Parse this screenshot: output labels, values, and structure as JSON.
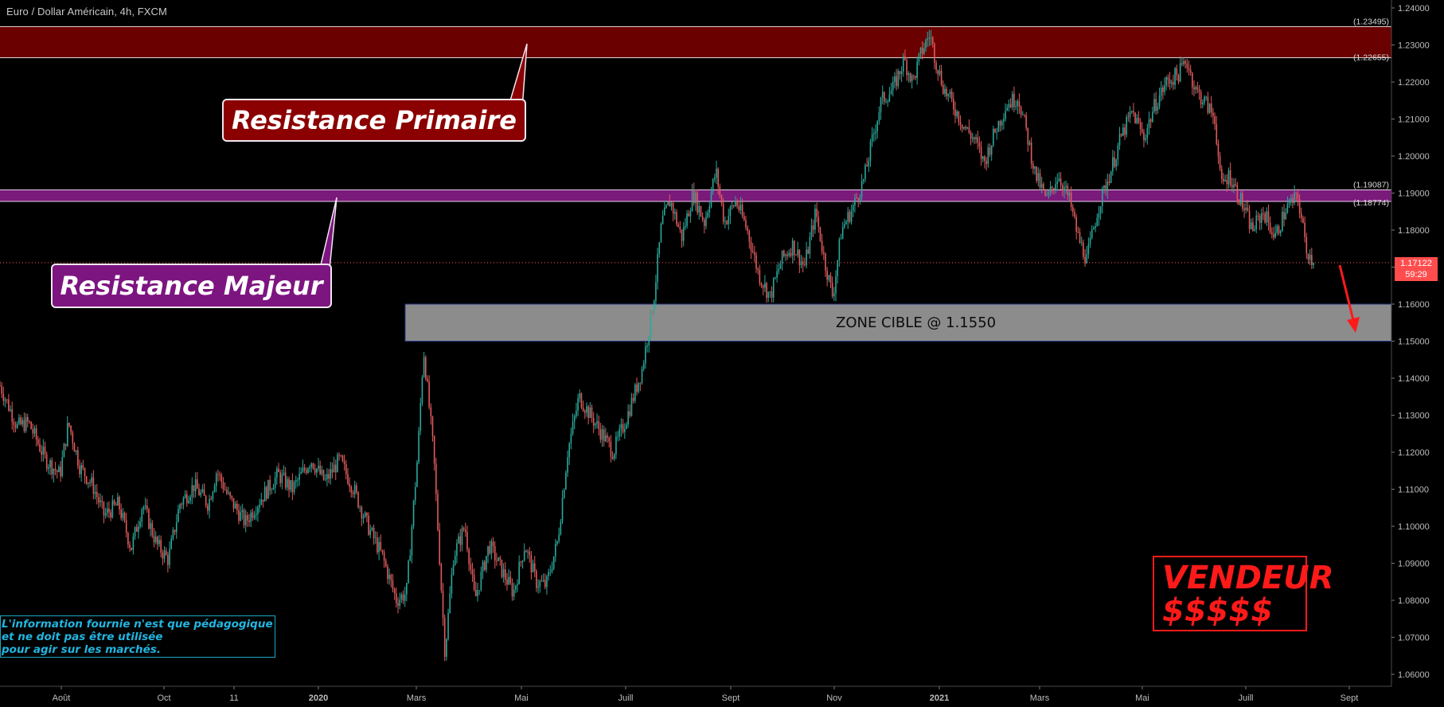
{
  "header": {
    "symbol_title": "Euro / Dollar Américain, 4h, FXCM"
  },
  "annotations": {
    "resistance_primaire": "Resistance Primaire",
    "resistance_majeur": "Resistance Majeur",
    "zone_cible": "ZONE CIBLE @  1.1550",
    "vendeur_line1": "VENDEUR",
    "vendeur_line2": "$$$$$",
    "info_line1": "L'information fournie n'est que pédagogique",
    "info_line2": "et ne doit pas être utilisée",
    "info_line3": "pour agir sur les marchés."
  },
  "price_tag": {
    "price": "1.17122",
    "countdown": "59:29"
  },
  "colors": {
    "background": "#000000",
    "candle_up": "#2aa89a",
    "candle_down": "#e05a5a",
    "primaire_band": "#6a0000",
    "majeur_band": "#7a1a7a",
    "zone_band": "#8c8c8c",
    "sell_arrow": "#ff1a1a",
    "price_line": "#ff5a5a"
  },
  "chart_data": {
    "type": "candlestick",
    "symbol": "EURUSD",
    "timeframe": "4h",
    "ylim": [
      1.056,
      1.243
    ],
    "y_ticks": [
      "1.24000",
      "1.23000",
      "1.22000",
      "1.21000",
      "1.20000",
      "1.19000",
      "1.18000",
      "1.17000",
      "1.16000",
      "1.15000",
      "1.14000",
      "1.13000",
      "1.12000",
      "1.11000",
      "1.10000",
      "1.09000",
      "1.08000",
      "1.07000",
      "1.06000"
    ],
    "x_ticks": [
      {
        "label": "Août",
        "bold": false
      },
      {
        "label": "Oct",
        "bold": false
      },
      {
        "label": "11",
        "bold": false
      },
      {
        "label": "2020",
        "bold": true
      },
      {
        "label": "Mars",
        "bold": false
      },
      {
        "label": "Mai",
        "bold": false
      },
      {
        "label": "Juill",
        "bold": false
      },
      {
        "label": "Sept",
        "bold": false
      },
      {
        "label": "Nov",
        "bold": false
      },
      {
        "label": "2021",
        "bold": true
      },
      {
        "label": "Mars",
        "bold": false
      },
      {
        "label": "Mai",
        "bold": false
      },
      {
        "label": "Juill",
        "bold": false
      },
      {
        "label": "Sept",
        "bold": false
      }
    ],
    "levels": [
      {
        "name": "primaire_top",
        "value": 1.23495,
        "label": "(1.23495)"
      },
      {
        "name": "primaire_bottom",
        "value": 1.22655,
        "label": "(1.22655)"
      },
      {
        "name": "majeur_top",
        "value": 1.19087,
        "label": "(1.19087)"
      },
      {
        "name": "majeur_bottom",
        "value": 1.18774,
        "label": "(1.18774)"
      }
    ],
    "zone_cible": {
      "top": 1.16,
      "bottom": 1.15,
      "label": "ZONE CIBLE @  1.1550"
    },
    "last_price": 1.17122,
    "close_path": [
      [
        0,
        1.138
      ],
      [
        0.012,
        1.127
      ],
      [
        0.02,
        1.128
      ],
      [
        0.032,
        1.118
      ],
      [
        0.042,
        1.114
      ],
      [
        0.048,
        1.128
      ],
      [
        0.056,
        1.116
      ],
      [
        0.065,
        1.111
      ],
      [
        0.073,
        1.103
      ],
      [
        0.083,
        1.106
      ],
      [
        0.092,
        1.094
      ],
      [
        0.1,
        1.106
      ],
      [
        0.11,
        1.095
      ],
      [
        0.118,
        1.091
      ],
      [
        0.126,
        1.106
      ],
      [
        0.136,
        1.111
      ],
      [
        0.146,
        1.106
      ],
      [
        0.152,
        1.115
      ],
      [
        0.16,
        1.108
      ],
      [
        0.172,
        1.101
      ],
      [
        0.182,
        1.107
      ],
      [
        0.195,
        1.114
      ],
      [
        0.205,
        1.11
      ],
      [
        0.218,
        1.118
      ],
      [
        0.228,
        1.112
      ],
      [
        0.238,
        1.118
      ],
      [
        0.248,
        1.11
      ],
      [
        0.258,
        1.1
      ],
      [
        0.268,
        1.092
      ],
      [
        0.278,
        1.08
      ],
      [
        0.285,
        1.082
      ],
      [
        0.293,
        1.12
      ],
      [
        0.297,
        1.148
      ],
      [
        0.304,
        1.12
      ],
      [
        0.312,
        1.066
      ],
      [
        0.318,
        1.092
      ],
      [
        0.326,
        1.1
      ],
      [
        0.333,
        1.08
      ],
      [
        0.343,
        1.095
      ],
      [
        0.352,
        1.088
      ],
      [
        0.36,
        1.082
      ],
      [
        0.368,
        1.095
      ],
      [
        0.376,
        1.085
      ],
      [
        0.383,
        1.084
      ],
      [
        0.391,
        1.096
      ],
      [
        0.398,
        1.12
      ],
      [
        0.406,
        1.135
      ],
      [
        0.414,
        1.13
      ],
      [
        0.422,
        1.125
      ],
      [
        0.43,
        1.12
      ],
      [
        0.44,
        1.13
      ],
      [
        0.45,
        1.142
      ],
      [
        0.458,
        1.16
      ],
      [
        0.464,
        1.182
      ],
      [
        0.47,
        1.188
      ],
      [
        0.478,
        1.178
      ],
      [
        0.486,
        1.19
      ],
      [
        0.494,
        1.182
      ],
      [
        0.502,
        1.196
      ],
      [
        0.508,
        1.182
      ],
      [
        0.516,
        1.188
      ],
      [
        0.524,
        1.18
      ],
      [
        0.532,
        1.168
      ],
      [
        0.54,
        1.162
      ],
      [
        0.548,
        1.172
      ],
      [
        0.556,
        1.176
      ],
      [
        0.564,
        1.17
      ],
      [
        0.572,
        1.185
      ],
      [
        0.578,
        1.172
      ],
      [
        0.584,
        1.162
      ],
      [
        0.59,
        1.18
      ],
      [
        0.598,
        1.186
      ],
      [
        0.606,
        1.194
      ],
      [
        0.612,
        1.205
      ],
      [
        0.618,
        1.215
      ],
      [
        0.626,
        1.218
      ],
      [
        0.634,
        1.226
      ],
      [
        0.64,
        1.22
      ],
      [
        0.646,
        1.228
      ],
      [
        0.652,
        1.233
      ],
      [
        0.656,
        1.226
      ],
      [
        0.662,
        1.218
      ],
      [
        0.668,
        1.214
      ],
      [
        0.676,
        1.208
      ],
      [
        0.684,
        1.204
      ],
      [
        0.69,
        1.198
      ],
      [
        0.698,
        1.207
      ],
      [
        0.706,
        1.214
      ],
      [
        0.714,
        1.216
      ],
      [
        0.72,
        1.206
      ],
      [
        0.726,
        1.195
      ],
      [
        0.734,
        1.188
      ],
      [
        0.742,
        1.195
      ],
      [
        0.75,
        1.188
      ],
      [
        0.756,
        1.178
      ],
      [
        0.762,
        1.172
      ],
      [
        0.77,
        1.186
      ],
      [
        0.778,
        1.195
      ],
      [
        0.786,
        1.205
      ],
      [
        0.794,
        1.212
      ],
      [
        0.802,
        1.205
      ],
      [
        0.81,
        1.214
      ],
      [
        0.818,
        1.22
      ],
      [
        0.826,
        1.222
      ],
      [
        0.832,
        1.226
      ],
      [
        0.838,
        1.218
      ],
      [
        0.846,
        1.214
      ],
      [
        0.852,
        1.21
      ],
      [
        0.856,
        1.192
      ],
      [
        0.862,
        1.195
      ],
      [
        0.87,
        1.188
      ],
      [
        0.878,
        1.18
      ],
      [
        0.886,
        1.185
      ],
      [
        0.894,
        1.178
      ],
      [
        0.902,
        1.186
      ],
      [
        0.91,
        1.189
      ],
      [
        0.916,
        1.175
      ],
      [
        0.921,
        1.1712
      ]
    ]
  }
}
